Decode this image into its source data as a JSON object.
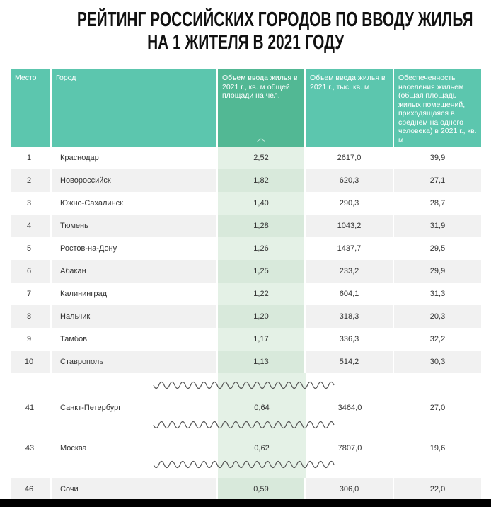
{
  "title": {
    "line1": "РЕЙТИНГ РОССИЙСКИХ ГОРОДОВ ПО ВВОДУ ЖИЛЬЯ",
    "line2": "НА 1 ЖИТЕЛЯ В 2021 ГОДУ"
  },
  "headers": [
    "Место",
    "Город",
    "Объем ввода жилья в 2021 г., кв. м общей площади на чел.",
    "Объем ввода жилья в 2021 г., тыс. кв. м",
    "Обеспеченность населения жильем (общая площадь жилых помещений, приходящаяся в среднем на одного человека) в 2021 г., кв. м"
  ],
  "sort_icon": "chevron-up-icon",
  "colors": {
    "header": "#5cc6ae",
    "header_highlight": "#52b894",
    "column_highlight": "#e4f1e6"
  },
  "rows": [
    [
      "1",
      "Краснодар",
      "2,52",
      "2617,0",
      "39,9"
    ],
    [
      "2",
      "Новороссийск",
      "1,82",
      "620,3",
      "27,1"
    ],
    [
      "3",
      "Южно-Сахалинск",
      "1,40",
      "290,3",
      "28,7"
    ],
    [
      "4",
      "Тюмень",
      "1,28",
      "1043,2",
      "31,9"
    ],
    [
      "5",
      "Ростов-на-Дону",
      "1,26",
      "1437,7",
      "29,5"
    ],
    [
      "6",
      "Абакан",
      "1,25",
      "233,2",
      "29,9"
    ],
    [
      "7",
      "Калининград",
      "1,22",
      "604,1",
      "31,3"
    ],
    [
      "8",
      "Нальчик",
      "1,20",
      "318,3",
      "20,3"
    ],
    [
      "9",
      "Тамбов",
      "1,17",
      "336,3",
      "32,2"
    ],
    [
      "10",
      "Ставрополь",
      "1,13",
      "514,2",
      "30,3"
    ]
  ],
  "gap_rows": [
    [
      "41",
      "Санкт-Петербург",
      "0,64",
      "3464,0",
      "27,0"
    ],
    [
      "43",
      "Москва",
      "0,62",
      "7807,0",
      "19,6"
    ]
  ],
  "last_row": [
    "46",
    "Сочи",
    "0,59",
    "306,0",
    "22,0"
  ]
}
